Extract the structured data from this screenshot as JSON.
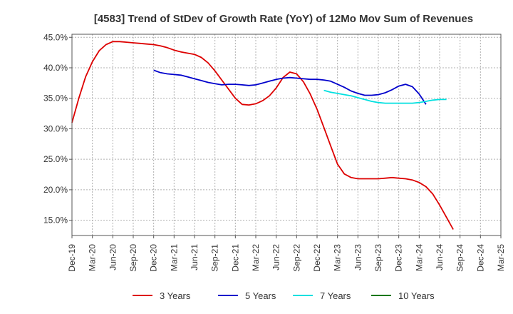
{
  "chart_data": {
    "type": "line",
    "title": "[4583]  Trend of StDev of Growth Rate (YoY) of 12Mo Mov Sum of Revenues",
    "xlabel": "",
    "ylabel": "",
    "y_tick_labels": [
      "15.0%",
      "20.0%",
      "25.0%",
      "30.0%",
      "35.0%",
      "40.0%",
      "45.0%"
    ],
    "y_ticks": [
      15,
      20,
      25,
      30,
      35,
      40,
      45
    ],
    "ylim": [
      12.5,
      45.5
    ],
    "x_tick_labels": [
      "Dec-19",
      "Mar-20",
      "Jun-20",
      "Sep-20",
      "Dec-20",
      "Mar-21",
      "Jun-21",
      "Sep-21",
      "Dec-21",
      "Mar-22",
      "Jun-22",
      "Sep-22",
      "Dec-22",
      "Mar-23",
      "Jun-23",
      "Sep-23",
      "Dec-23",
      "Mar-24",
      "Jun-24",
      "Sep-24",
      "Dec-24",
      "Mar-25"
    ],
    "x_index_range": [
      0,
      63
    ],
    "grid": true,
    "legend_position": "bottom",
    "series": [
      {
        "name": "3 Years",
        "color": "#dd0000",
        "start_index": 0,
        "values": [
          31.0,
          35.0,
          38.5,
          41.0,
          42.8,
          43.8,
          44.3,
          44.3,
          44.2,
          44.1,
          44.0,
          43.9,
          43.8,
          43.6,
          43.3,
          42.9,
          42.6,
          42.4,
          42.2,
          41.7,
          40.8,
          39.5,
          38.0,
          36.5,
          35.0,
          34.0,
          33.9,
          34.1,
          34.6,
          35.4,
          36.7,
          38.4,
          39.3,
          39.0,
          37.7,
          35.7,
          33.2,
          30.2,
          27.2,
          24.2,
          22.6,
          22.0,
          21.8,
          21.8,
          21.8,
          21.8,
          21.9,
          22.0,
          21.9,
          21.8,
          21.6,
          21.2,
          20.5,
          19.3,
          17.5,
          15.5,
          13.5
        ]
      },
      {
        "name": "5 Years",
        "color": "#0000cc",
        "start_index": 12,
        "values": [
          39.6,
          39.2,
          39.0,
          38.9,
          38.8,
          38.5,
          38.2,
          37.9,
          37.6,
          37.4,
          37.2,
          37.3,
          37.3,
          37.2,
          37.1,
          37.2,
          37.5,
          37.8,
          38.1,
          38.3,
          38.4,
          38.3,
          38.2,
          38.1,
          38.1,
          38.0,
          37.8,
          37.3,
          36.8,
          36.2,
          35.8,
          35.5,
          35.5,
          35.6,
          35.9,
          36.4,
          37.0,
          37.3,
          36.9,
          35.7,
          34.0
        ]
      },
      {
        "name": "7 Years",
        "color": "#00e0e0",
        "start_index": 37,
        "values": [
          36.3,
          36.0,
          35.8,
          35.6,
          35.4,
          35.1,
          34.8,
          34.5,
          34.3,
          34.2,
          34.2,
          34.2,
          34.2,
          34.2,
          34.3,
          34.5,
          34.7,
          34.8,
          34.8
        ]
      },
      {
        "name": "10 Years",
        "color": "#007700",
        "start_index": 0,
        "values": []
      }
    ]
  }
}
